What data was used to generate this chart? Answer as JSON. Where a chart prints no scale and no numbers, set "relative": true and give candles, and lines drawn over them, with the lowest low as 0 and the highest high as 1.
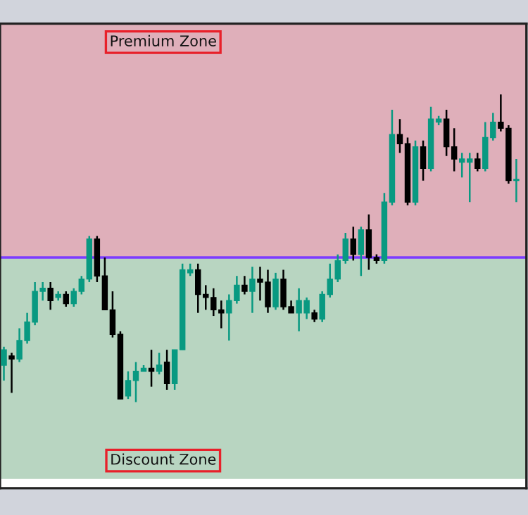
{
  "chart_data": {
    "type": "candlestick",
    "relative": true,
    "categories": [
      null,
      null,
      null,
      null,
      null,
      null,
      null,
      null,
      null,
      null,
      null,
      null,
      null,
      null,
      null,
      null,
      null,
      null,
      null,
      null,
      null,
      null,
      null,
      null,
      null,
      null,
      null,
      null,
      null,
      null,
      null,
      null,
      null,
      null,
      null,
      null,
      null,
      null,
      null,
      null,
      null,
      null,
      null,
      null,
      null,
      null,
      null,
      null,
      null,
      null,
      null,
      null,
      null,
      null,
      null,
      null,
      null,
      null,
      null,
      null,
      null,
      null,
      null,
      null,
      null,
      null,
      null
    ],
    "ohlc": [
      [
        0.12,
        0.18,
        0.07,
        0.17
      ],
      [
        0.15,
        0.16,
        0.03,
        0.14
      ],
      [
        0.14,
        0.24,
        0.13,
        0.2
      ],
      [
        0.2,
        0.29,
        0.19,
        0.26
      ],
      [
        0.26,
        0.39,
        0.25,
        0.36
      ],
      [
        0.36,
        0.39,
        0.33,
        0.37
      ],
      [
        0.37,
        0.39,
        0.3,
        0.33
      ],
      [
        0.34,
        0.36,
        0.33,
        0.35
      ],
      [
        0.35,
        0.36,
        0.31,
        0.32
      ],
      [
        0.32,
        0.37,
        0.31,
        0.36
      ],
      [
        0.36,
        0.41,
        0.35,
        0.4
      ],
      [
        0.4,
        0.54,
        0.39,
        0.53
      ],
      [
        0.53,
        0.54,
        0.39,
        0.41
      ],
      [
        0.41,
        0.47,
        0.3,
        0.3
      ],
      [
        0.3,
        0.36,
        0.21,
        0.22
      ],
      [
        0.22,
        0.23,
        0.01,
        0.01
      ],
      [
        0.02,
        0.1,
        0.01,
        0.07
      ],
      [
        0.07,
        0.13,
        0.0,
        0.1
      ],
      [
        0.1,
        0.12,
        0.1,
        0.11
      ],
      [
        0.11,
        0.17,
        0.05,
        0.1
      ],
      [
        0.1,
        0.16,
        0.09,
        0.12
      ],
      [
        0.13,
        0.17,
        0.04,
        0.06
      ],
      [
        0.06,
        0.17,
        0.04,
        0.17
      ],
      [
        0.17,
        0.45,
        0.17,
        0.43
      ],
      [
        0.42,
        0.45,
        0.41,
        0.43
      ],
      [
        0.43,
        0.45,
        0.29,
        0.35
      ],
      [
        0.35,
        0.38,
        0.3,
        0.34
      ],
      [
        0.34,
        0.37,
        0.28,
        0.3
      ],
      [
        0.3,
        0.33,
        0.24,
        0.29
      ],
      [
        0.29,
        0.35,
        0.2,
        0.33
      ],
      [
        0.33,
        0.41,
        0.32,
        0.38
      ],
      [
        0.38,
        0.41,
        0.35,
        0.36
      ],
      [
        0.36,
        0.44,
        0.29,
        0.4
      ],
      [
        0.4,
        0.44,
        0.33,
        0.39
      ],
      [
        0.39,
        0.43,
        0.29,
        0.31
      ],
      [
        0.31,
        0.42,
        0.3,
        0.4
      ],
      [
        0.4,
        0.43,
        0.3,
        0.31
      ],
      [
        0.31,
        0.33,
        0.29,
        0.29
      ],
      [
        0.29,
        0.37,
        0.23,
        0.33
      ],
      [
        0.29,
        0.34,
        0.27,
        0.33
      ],
      [
        0.29,
        0.3,
        0.26,
        0.27
      ],
      [
        0.27,
        0.36,
        0.26,
        0.35
      ],
      [
        0.35,
        0.45,
        0.34,
        0.4
      ],
      [
        0.4,
        0.48,
        0.39,
        0.46
      ],
      [
        0.46,
        0.55,
        0.45,
        0.53
      ],
      [
        0.53,
        0.57,
        0.46,
        0.48
      ],
      [
        0.48,
        0.57,
        0.41,
        0.56
      ],
      [
        0.56,
        0.61,
        0.43,
        0.47
      ],
      [
        0.47,
        0.48,
        0.45,
        0.46
      ],
      [
        0.46,
        0.68,
        0.45,
        0.65
      ],
      [
        0.65,
        0.95,
        0.64,
        0.87
      ],
      [
        0.87,
        0.92,
        0.81,
        0.84
      ],
      [
        0.84,
        0.86,
        0.64,
        0.65
      ],
      [
        0.65,
        0.85,
        0.64,
        0.83
      ],
      [
        0.83,
        0.85,
        0.72,
        0.76
      ],
      [
        0.76,
        0.96,
        0.75,
        0.92
      ],
      [
        0.91,
        0.93,
        0.9,
        0.92
      ],
      [
        0.92,
        0.95,
        0.8,
        0.83
      ],
      [
        0.83,
        0.89,
        0.75,
        0.79
      ],
      [
        0.78,
        0.81,
        0.73,
        0.79
      ],
      [
        0.78,
        0.81,
        0.65,
        0.79
      ],
      [
        0.79,
        0.81,
        0.75,
        0.76
      ],
      [
        0.76,
        0.91,
        0.75,
        0.86
      ],
      [
        0.86,
        0.94,
        0.85,
        0.91
      ],
      [
        0.91,
        1.0,
        0.88,
        0.89
      ],
      [
        0.89,
        0.9,
        0.71,
        0.72
      ],
      [
        0.72,
        0.79,
        0.65,
        0.72
      ]
    ],
    "colors": [
      "#089981",
      "#000000",
      "#089981",
      "#089981",
      "#089981",
      "#089981",
      "#000000",
      "#089981",
      "#000000",
      "#089981",
      "#089981",
      "#089981",
      "#000000",
      "#000000",
      "#000000",
      "#000000",
      "#089981",
      "#089981",
      "#089981",
      "#000000",
      "#089981",
      "#000000",
      "#089981",
      "#089981",
      "#089981",
      "#000000",
      "#000000",
      "#000000",
      "#000000",
      "#089981",
      "#089981",
      "#000000",
      "#089981",
      "#000000",
      "#000000",
      "#089981",
      "#000000",
      "#000000",
      "#089981",
      "#089981",
      "#000000",
      "#089981",
      "#089981",
      "#089981",
      "#089981",
      "#000000",
      "#089981",
      "#000000",
      "#000000",
      "#089981",
      "#089981",
      "#000000",
      "#000000",
      "#089981",
      "#000000",
      "#089981",
      "#089981",
      "#000000",
      "#000000",
      "#089981",
      "#089981",
      "#000000",
      "#089981",
      "#089981",
      "#000000",
      "#000000",
      "#089981"
    ],
    "bands": [
      {
        "axis": "y",
        "from": 0.47,
        "to": 1.23,
        "label": "Premium Zone",
        "color": "#dfafba"
      },
      {
        "axis": "y",
        "from": -0.25,
        "to": 0.47,
        "label": "Discount Zone",
        "color": "#b8d5c1"
      }
    ],
    "ref_lines": [
      {
        "axis": "y",
        "value": 0.47,
        "color": "#7c3cff",
        "line_style": "solid"
      }
    ],
    "grid": false,
    "legend": false
  }
}
